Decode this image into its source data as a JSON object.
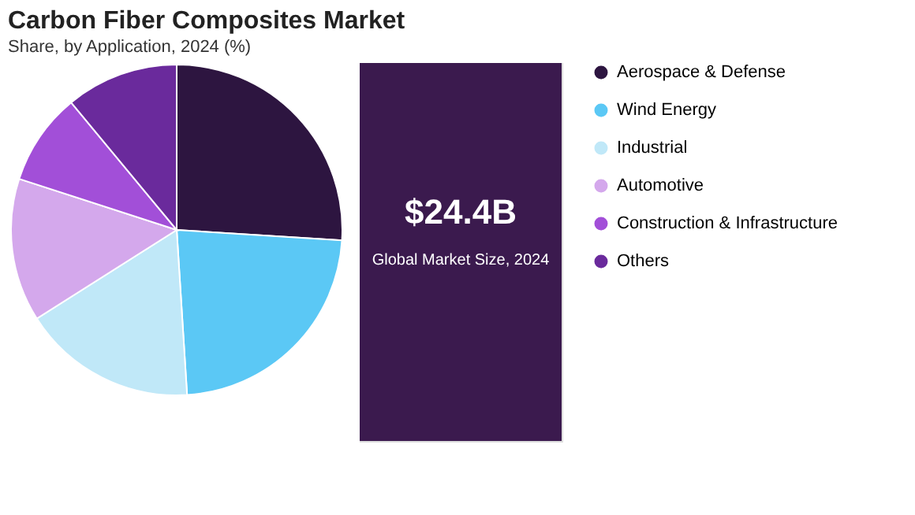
{
  "chart_data": {
    "type": "pie",
    "title": "Carbon Fiber Composites Market",
    "subtitle": "Share, by Application, 2024 (%)",
    "categories": [
      "Aerospace & Defense",
      "Wind Energy",
      "Industrial",
      "Automotive",
      "Construction & Infrastructure",
      "Others"
    ],
    "values": [
      26,
      23,
      17,
      14,
      9,
      11
    ],
    "colors": [
      "#2d1540",
      "#5bc8f5",
      "#c0e8f8",
      "#d4a8ec",
      "#a24fd8",
      "#6a2a9c"
    ],
    "legend": "right",
    "annotations": [
      "$24.4B",
      "Global Market Size, 2024"
    ]
  }
}
